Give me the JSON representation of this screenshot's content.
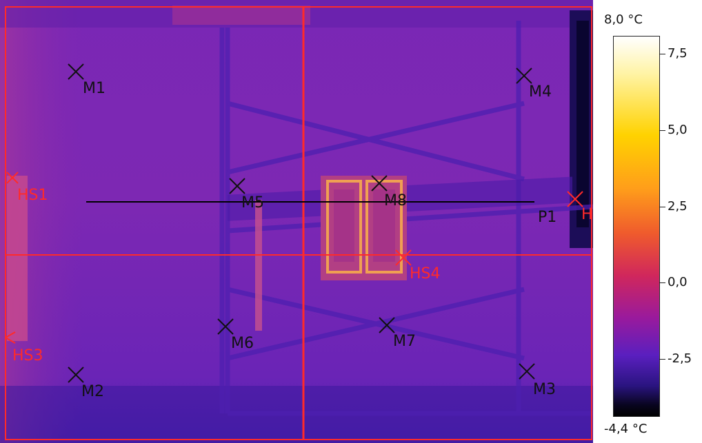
{
  "colors": {
    "marker_black": "#111111",
    "marker_red": "#ff2a2a",
    "line_black": "#000000",
    "line_red": "#ff2a2a"
  },
  "markers": {
    "M1": "M1",
    "M2": "M2",
    "M3": "M3",
    "M4": "M4",
    "M5": "M5",
    "M6": "M6",
    "M7": "M7",
    "M8": "M8",
    "HS1": "HS1",
    "HS3": "HS3",
    "HS4": "HS4",
    "HS_right": "H",
    "P1": "P1"
  },
  "scale": {
    "max_label": "8,0 °C",
    "min_label": "-4,4 °C",
    "ticks": [
      "7,5",
      "5,0",
      "2,5",
      "0,0",
      "-2,5"
    ]
  }
}
